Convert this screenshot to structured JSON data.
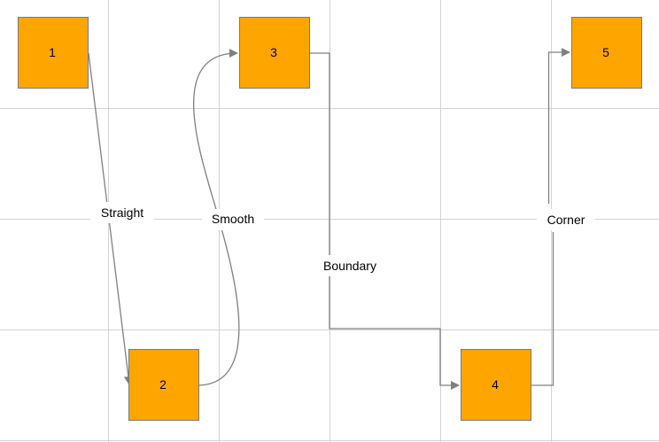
{
  "nodes": [
    {
      "id": "1",
      "label": "1"
    },
    {
      "id": "2",
      "label": "2"
    },
    {
      "id": "3",
      "label": "3"
    },
    {
      "id": "4",
      "label": "4"
    },
    {
      "id": "5",
      "label": "5"
    }
  ],
  "edges": [
    {
      "from": "1",
      "to": "2",
      "label": "Straight"
    },
    {
      "from": "2",
      "to": "3",
      "label": "Smooth"
    },
    {
      "from": "3",
      "to": "4",
      "label": "Boundary"
    },
    {
      "from": "4",
      "to": "5",
      "label": "Corner"
    }
  ],
  "colors": {
    "node_fill": "#FFA500",
    "node_stroke": "#7a7a7a",
    "edge": "#808080",
    "grid": "#d3d3d3"
  }
}
